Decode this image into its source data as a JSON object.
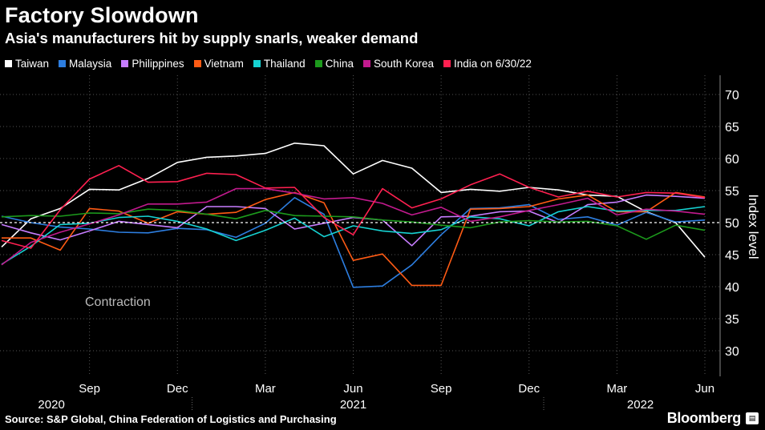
{
  "header": {
    "title": "Factory Slowdown",
    "subtitle": "Asia's manufacturers hit by supply snarls, weaker demand"
  },
  "footer": {
    "source": "Source: S&P Global, China Federation of Logistics and Purchasing",
    "brand": "Bloomberg",
    "brand_icon": "chart-icon"
  },
  "colors": {
    "background": "#000000",
    "grid": "#555555",
    "baseline": "#ffffff"
  },
  "chart_data": {
    "type": "line",
    "title": "Factory Slowdown",
    "subtitle": "Asia's manufacturers hit by supply snarls, weaker demand",
    "ylabel": "Index level",
    "xlabel": "",
    "ylim": [
      26,
      73
    ],
    "yticks": [
      30,
      35,
      40,
      45,
      50,
      55,
      60,
      65,
      70
    ],
    "grid": true,
    "legend": "top",
    "annotation": "Contraction",
    "reference_line": 50,
    "x": [
      "2020-06",
      "2020-07",
      "2020-08",
      "2020-09",
      "2020-10",
      "2020-11",
      "2020-12",
      "2021-01",
      "2021-02",
      "2021-03",
      "2021-04",
      "2021-05",
      "2021-06",
      "2021-07",
      "2021-08",
      "2021-09",
      "2021-10",
      "2021-11",
      "2021-12",
      "2022-01",
      "2022-02",
      "2022-03",
      "2022-04",
      "2022-05",
      "2022-06"
    ],
    "x_tick_labels": [
      {
        "month": "Sep",
        "year": "2020"
      },
      {
        "month": "Dec",
        "year": ""
      },
      {
        "month": "Mar",
        "year": ""
      },
      {
        "month": "Jun",
        "year": "2021"
      },
      {
        "month": "Sep",
        "year": ""
      },
      {
        "month": "Dec",
        "year": ""
      },
      {
        "month": "Mar",
        "year": "2022"
      },
      {
        "month": "Jun",
        "year": ""
      }
    ],
    "series": [
      {
        "name": "Taiwan",
        "color": "#ffffff",
        "values": [
          46.2,
          50.6,
          52.2,
          55.2,
          55.1,
          56.9,
          59.4,
          60.2,
          60.4,
          60.8,
          62.4,
          62.0,
          57.6,
          59.7,
          58.5,
          54.7,
          55.2,
          54.9,
          55.5,
          55.1,
          54.3,
          54.1,
          51.7,
          50.0,
          44.6
        ]
      },
      {
        "name": "Malaysia",
        "color": "#2d7ee0",
        "values": [
          51.0,
          50.0,
          49.3,
          49.0,
          48.5,
          48.4,
          49.1,
          48.9,
          47.7,
          49.9,
          53.9,
          51.3,
          39.9,
          40.1,
          43.4,
          48.1,
          52.2,
          52.3,
          52.8,
          50.5,
          50.9,
          49.6,
          51.6,
          50.1,
          50.4
        ]
      },
      {
        "name": "Philippines",
        "color": "#c77dff",
        "values": [
          49.7,
          48.4,
          47.3,
          48.7,
          50.2,
          49.7,
          49.2,
          52.5,
          52.5,
          52.2,
          49.0,
          49.9,
          50.8,
          50.4,
          46.4,
          50.9,
          51.0,
          51.7,
          51.8,
          50.0,
          52.8,
          53.2,
          54.3,
          54.1,
          53.8
        ]
      },
      {
        "name": "Vietnam",
        "color": "#ff5b14",
        "values": [
          47.6,
          47.6,
          45.7,
          52.2,
          51.8,
          49.9,
          51.7,
          51.3,
          51.6,
          53.6,
          54.7,
          53.1,
          44.1,
          45.1,
          40.2,
          40.2,
          52.1,
          52.2,
          52.5,
          53.7,
          54.3,
          51.7,
          51.7,
          54.7,
          54.0
        ]
      },
      {
        "name": "Thailand",
        "color": "#16d2d2",
        "values": [
          43.5,
          46.3,
          49.7,
          49.9,
          50.8,
          51.0,
          50.2,
          49.0,
          47.2,
          48.8,
          50.7,
          47.8,
          49.5,
          48.7,
          48.3,
          48.9,
          50.9,
          50.6,
          49.5,
          51.7,
          52.5,
          51.8,
          51.9,
          51.9,
          52.5
        ]
      },
      {
        "name": "China",
        "color": "#1c9a1c",
        "values": [
          50.9,
          51.1,
          51.0,
          51.5,
          51.4,
          52.1,
          51.9,
          51.3,
          50.6,
          51.9,
          51.1,
          51.0,
          50.9,
          50.4,
          50.1,
          49.6,
          49.2,
          50.1,
          50.3,
          50.1,
          50.2,
          49.5,
          47.4,
          49.6,
          48.8
        ]
      },
      {
        "name": "South Korea",
        "color": "#c21a8e",
        "values": [
          43.4,
          46.9,
          48.5,
          49.8,
          51.2,
          52.9,
          52.9,
          53.2,
          55.3,
          55.3,
          54.6,
          53.7,
          53.9,
          53.0,
          51.2,
          52.4,
          50.2,
          50.9,
          51.9,
          52.8,
          53.8,
          51.2,
          52.1,
          51.8,
          51.3
        ]
      },
      {
        "name": "India on 6/30/22",
        "color": "#ff2050",
        "values": [
          47.2,
          46.0,
          52.0,
          56.8,
          58.9,
          56.3,
          56.4,
          57.7,
          57.5,
          55.4,
          55.5,
          50.8,
          48.1,
          55.3,
          52.3,
          53.7,
          55.9,
          57.6,
          55.5,
          54.0,
          54.9,
          54.0,
          54.7,
          54.6,
          53.9
        ]
      }
    ]
  }
}
